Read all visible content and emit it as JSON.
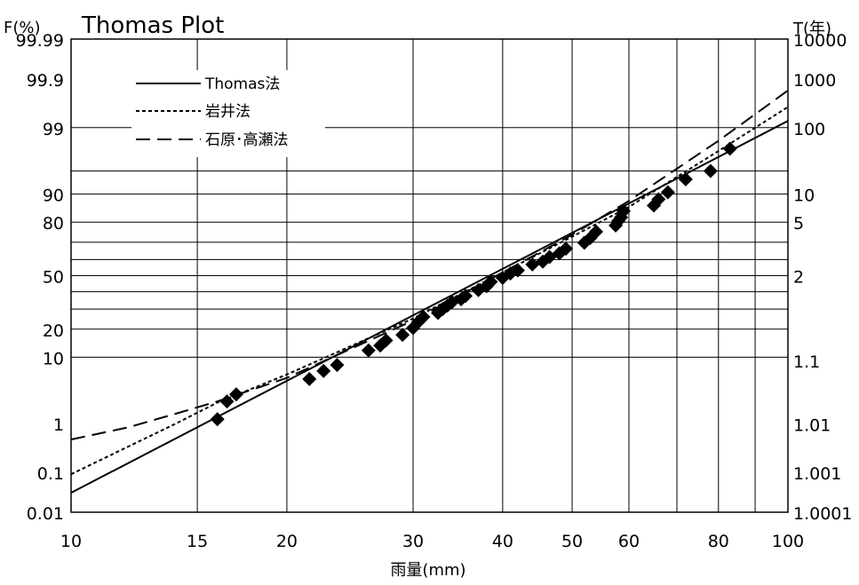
{
  "chart_data": {
    "type": "scatter",
    "title": "Thomas Plot",
    "ylabel_left": "F(%)",
    "ylabel_right": "T(年)",
    "xlabel": "雨量(mm)",
    "x_scale": "log",
    "xlim": [
      10,
      100
    ],
    "x_ticks": [
      10,
      15,
      20,
      30,
      40,
      50,
      60,
      80,
      100
    ],
    "x_grid": [
      10,
      15,
      20,
      30,
      40,
      50,
      60,
      70,
      80,
      90,
      100
    ],
    "y_scale": "probability",
    "ylim_percent": [
      0.01,
      99.99
    ],
    "y_ticks_left": [
      "0.01",
      "0.1",
      "1",
      "10",
      "20",
      "50",
      "80",
      "90",
      "99",
      "99.9",
      "99.99"
    ],
    "y_ticks_right": [
      "1.0001",
      "1.001",
      "1.01",
      "1.1",
      "2",
      "5",
      "10",
      "100",
      "1000",
      "10000"
    ],
    "y_grid_percent": [
      10,
      20,
      30,
      40,
      50,
      60,
      70,
      80,
      90,
      95,
      99
    ],
    "grid": true,
    "legend_position": "top-left",
    "legend": [
      "Thomas法",
      "岩井法",
      "石原･高瀬法"
    ],
    "series": [
      {
        "name": "Thomas法",
        "style": "solid",
        "x": [
          10,
          100
        ],
        "F": [
          0.032,
          99.25
        ]
      },
      {
        "name": "岩井法",
        "style": "dotted",
        "x": [
          10,
          14,
          16,
          20,
          30,
          40,
          50,
          60,
          80,
          100
        ],
        "F": [
          0.09,
          1.0,
          2.3,
          6.0,
          25,
          52,
          73,
          86,
          97.5,
          99.6
        ]
      },
      {
        "name": "石原･高瀬法",
        "style": "dashed",
        "x": [
          10,
          12,
          14,
          16,
          20,
          30,
          40,
          50,
          60,
          80,
          100
        ],
        "F": [
          0.5,
          0.85,
          1.5,
          2.4,
          5.4,
          24,
          52,
          74,
          88,
          98.3,
          99.82
        ]
      }
    ],
    "points": {
      "x": [
        16.0,
        16.5,
        17.0,
        21.5,
        22.5,
        23.5,
        26.0,
        27.0,
        27.5,
        29.0,
        30.0,
        30.5,
        31.0,
        32.5,
        33.0,
        33.5,
        34.0,
        35.0,
        35.5,
        37.0,
        38.0,
        38.5,
        40.0,
        41.0,
        42.0,
        44.0,
        45.5,
        46.5,
        48.0,
        49.0,
        52.0,
        53.0,
        54.0,
        57.5,
        58.0,
        58.5,
        59.0,
        65.0,
        66.0,
        68.0,
        72.0,
        78.0,
        83.0
      ],
      "F": [
        1.2,
        2.4,
        3.1,
        5.2,
        6.7,
        8.0,
        12.0,
        13.6,
        15.4,
        17.6,
        20.5,
        23.3,
        25.8,
        27.9,
        30.0,
        31.9,
        33.9,
        35.5,
        37.5,
        41.0,
        43.4,
        46.2,
        48.6,
        51.3,
        53.3,
        57.0,
        58.7,
        61.5,
        63.7,
        66.4,
        69.7,
        72.3,
        75.5,
        78.5,
        80.5,
        82.0,
        84.5,
        86.5,
        88.5,
        90.5,
        93.5,
        95.0,
        97.7
      ]
    }
  }
}
